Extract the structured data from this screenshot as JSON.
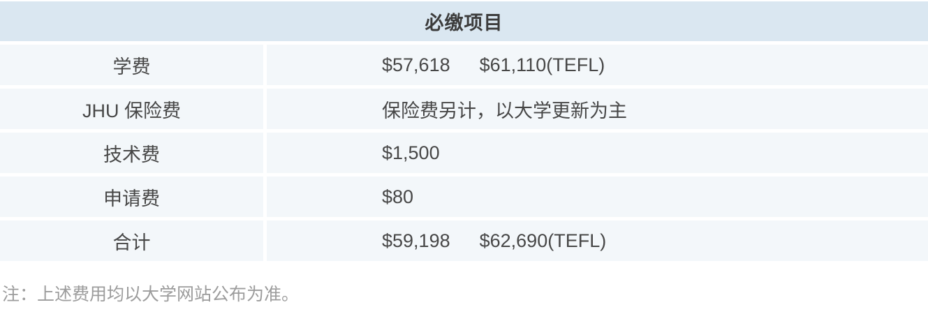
{
  "table": {
    "header": "必缴项目",
    "rows": [
      {
        "label": "学费",
        "values": [
          "$57,618",
          "$61,110(TEFL)"
        ]
      },
      {
        "label": "JHU 保险费",
        "values": [
          "保险费另计，以大学更新为主"
        ]
      },
      {
        "label": "技术费",
        "values": [
          "$1,500"
        ]
      },
      {
        "label": "申请费",
        "values": [
          "$80"
        ]
      },
      {
        "label": "合计",
        "values": [
          "$59,198",
          "$62,690(TEFL)"
        ]
      }
    ]
  },
  "note": "注：上述费用均以大学网站公布为准。",
  "colors": {
    "header_bg": "#dae7f1",
    "row_bg": "#f3f7fa",
    "text": "#474747",
    "note_text": "#9c9c9c"
  }
}
